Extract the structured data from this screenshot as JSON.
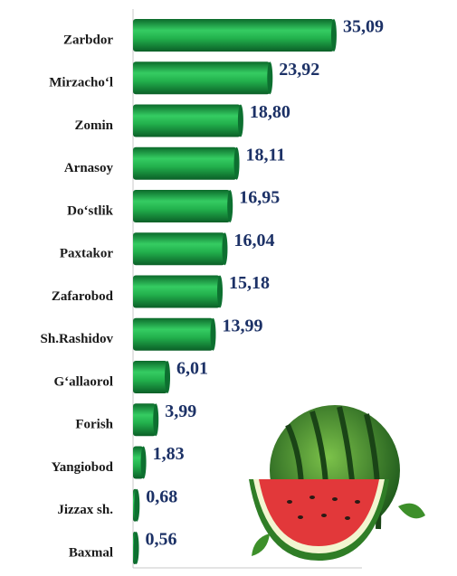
{
  "chart_data": {
    "type": "bar",
    "orientation": "horizontal",
    "categories": [
      "Zarbdor",
      "Mirzacho‘l",
      "Zomin",
      "Arnasoy",
      "Do‘stlik",
      "Paxtakor",
      "Zafarobod",
      "Sh.Rashidov",
      "G‘allaorol",
      "Forish",
      "Yangiobod",
      "Jizzax sh.",
      "Baxmal"
    ],
    "values": [
      35.09,
      23.92,
      18.8,
      18.11,
      16.95,
      16.04,
      15.18,
      13.99,
      6.01,
      3.99,
      1.83,
      0.68,
      0.56
    ],
    "value_labels": [
      "35,09",
      "23,92",
      "18,80",
      "18,11",
      "16,95",
      "16,04",
      "15,18",
      "13,99",
      "6,01",
      "3,99",
      "1,83",
      "0,68",
      "0,56"
    ],
    "color": "#1fae4a",
    "xlim": [
      0,
      40
    ]
  }
}
